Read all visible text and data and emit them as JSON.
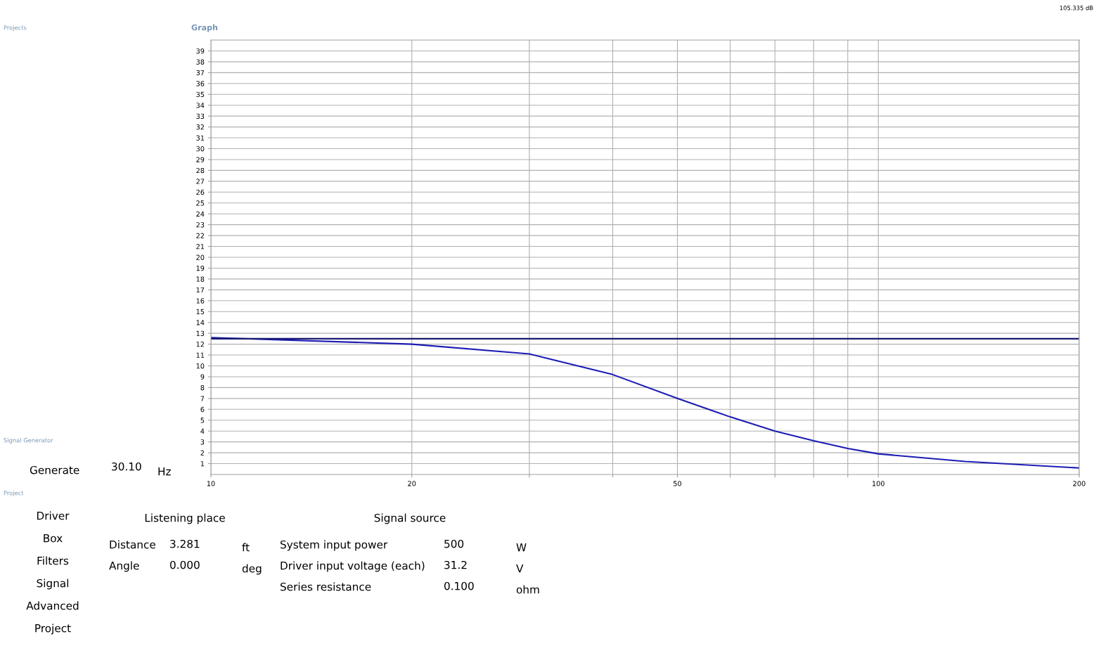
{
  "chart_data": {
    "type": "line",
    "title": "Graph",
    "x": [
      10,
      20,
      30,
      40,
      50,
      60,
      70,
      80,
      90,
      100,
      135,
      200
    ],
    "series": [
      {
        "color": "#1c1cb4",
        "values": [
          12.6,
          12.0,
          11.1,
          9.2,
          7.0,
          5.3,
          4.0,
          3.1,
          2.4,
          1.9,
          1.2,
          0.6
        ]
      },
      {
        "color": "#191970",
        "x": [
          10,
          200
        ],
        "values": [
          12.5,
          12.5
        ]
      }
    ],
    "log": "x",
    "xlim": [
      10,
      200
    ],
    "xticks": [
      10,
      20,
      {
        "value": 30,
        "label": null
      },
      {
        "value": 40,
        "label": null
      },
      50,
      {
        "value": 60,
        "label": null
      },
      {
        "value": 70,
        "label": null
      },
      {
        "value": 80,
        "label": null
      },
      {
        "value": 90,
        "label": null
      },
      100,
      200
    ],
    "ylim": [
      0,
      40
    ],
    "yticks": [
      1,
      2,
      3,
      4,
      5,
      6,
      7,
      8,
      9,
      10,
      11,
      12,
      13,
      14,
      15,
      16,
      17,
      18,
      19,
      20,
      21,
      22,
      23,
      24,
      25,
      26,
      27,
      28,
      29,
      30,
      31,
      32,
      33,
      34,
      35,
      36,
      37,
      38,
      39
    ],
    "grid": true,
    "legend": false,
    "annotations": [
      "105.335 dB",
      "Projects",
      "Signal Generator",
      "Generate",
      "30.10",
      "Hz",
      "Project",
      "Driver",
      "Box",
      "Filters",
      "Signal",
      "Advanced",
      "Project",
      "Listening place",
      "Distance",
      "3.281",
      "ft",
      "Angle",
      "0.000",
      "deg",
      "Signal source",
      "System input power",
      "500",
      "W",
      "Driver input voltage (each)",
      "31.2",
      "V",
      "Series resistance",
      "0.100",
      "ohm"
    ]
  }
}
